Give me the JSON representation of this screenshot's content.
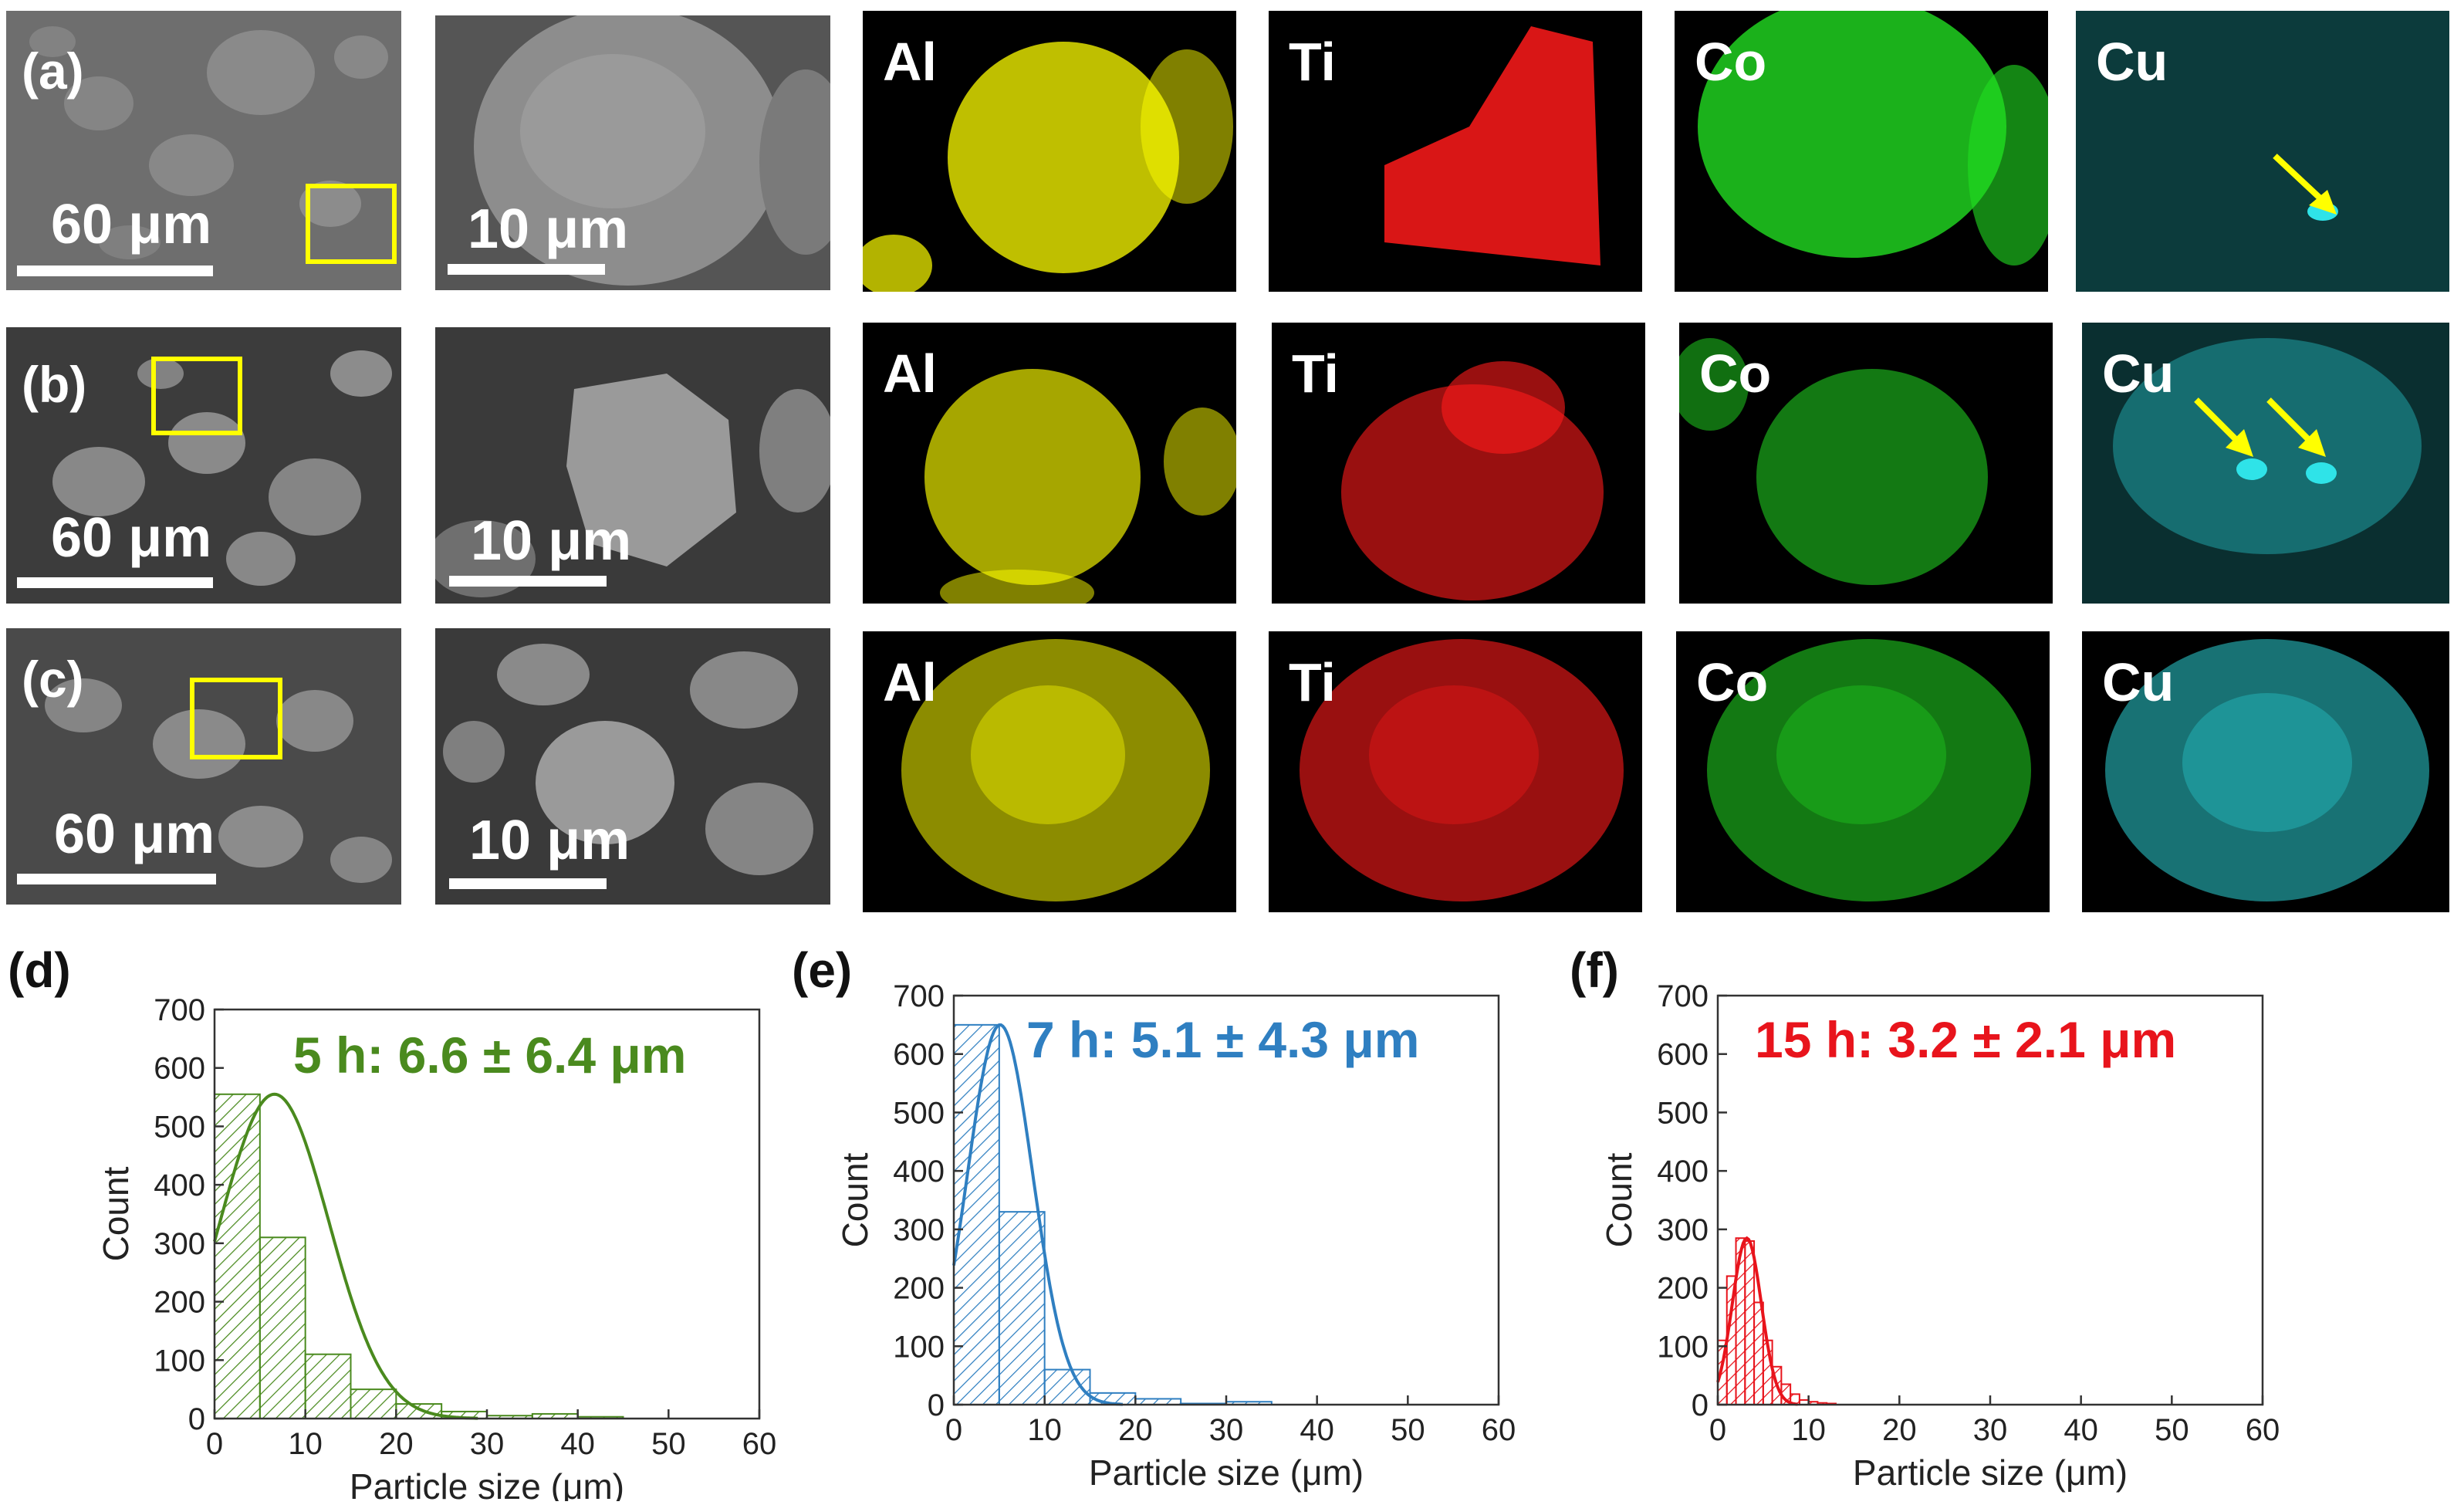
{
  "figure": {
    "rows": [
      {
        "label": "(a)",
        "sem_low_scale": "60 μm",
        "sem_high_scale": "10 μm",
        "elements": [
          "Al",
          "Ti",
          "Co",
          "Cu"
        ]
      },
      {
        "label": "(b)",
        "sem_low_scale": "60 μm",
        "sem_high_scale": "10 μm",
        "elements": [
          "Al",
          "Ti",
          "Co",
          "Cu"
        ]
      },
      {
        "label": "(c)",
        "sem_low_scale": "60 μm",
        "sem_high_scale": "10 μm",
        "elements": [
          "Al",
          "Ti",
          "Co",
          "Cu"
        ]
      }
    ],
    "element_colors": {
      "Al": "#ffff00",
      "Ti": "#ff1a1a",
      "Co": "#22dd22",
      "Cu": "#2fe3e8"
    },
    "roi_color": "#ffff00"
  },
  "chart_data": [
    {
      "panel": "(d)",
      "type": "bar",
      "series_label": "5 h: 6.6 ± 6.4 μm",
      "color": "#4a8a1e",
      "xlabel": "Particle size (μm)",
      "ylabel": "Count",
      "xlim": [
        0,
        60
      ],
      "ylim": [
        0,
        700
      ],
      "xticks": [
        0,
        10,
        20,
        30,
        40,
        50,
        60
      ],
      "yticks": [
        0,
        100,
        200,
        300,
        400,
        500,
        600,
        700
      ],
      "bin_width": 5,
      "bin_starts": [
        0,
        5,
        10,
        15,
        20,
        25,
        30,
        35,
        40
      ],
      "counts": [
        555,
        310,
        110,
        50,
        25,
        12,
        5,
        8,
        3
      ],
      "fit_mean": 6.6,
      "fit_peak": 555
    },
    {
      "panel": "(e)",
      "type": "bar",
      "series_label": "7 h: 5.1 ± 4.3 μm",
      "color": "#2f7fc1",
      "xlabel": "Particle size (μm)",
      "ylabel": "Count",
      "xlim": [
        0,
        60
      ],
      "ylim": [
        0,
        700
      ],
      "xticks": [
        0,
        10,
        20,
        30,
        40,
        50,
        60
      ],
      "yticks": [
        0,
        100,
        200,
        300,
        400,
        500,
        600,
        700
      ],
      "bin_width": 5,
      "bin_starts": [
        0,
        5,
        10,
        15,
        20,
        25,
        30
      ],
      "counts": [
        650,
        330,
        60,
        20,
        10,
        2,
        5
      ],
      "fit_mean": 5.1,
      "fit_peak": 650
    },
    {
      "panel": "(f)",
      "type": "bar",
      "series_label": "15 h: 3.2 ± 2.1 μm",
      "color": "#e8141c",
      "xlabel": "Particle size (μm)",
      "ylabel": "Count",
      "xlim": [
        0,
        60
      ],
      "ylim": [
        0,
        700
      ],
      "xticks": [
        0,
        10,
        20,
        30,
        40,
        50,
        60
      ],
      "yticks": [
        0,
        100,
        200,
        300,
        400,
        500,
        600,
        700
      ],
      "bin_width": 1,
      "bin_starts": [
        0,
        1,
        2,
        3,
        4,
        5,
        6,
        7,
        8,
        9,
        10,
        11,
        12
      ],
      "counts": [
        110,
        220,
        285,
        280,
        175,
        110,
        65,
        35,
        18,
        8,
        5,
        3,
        2
      ],
      "fit_mean": 3.2,
      "fit_peak": 285
    }
  ]
}
